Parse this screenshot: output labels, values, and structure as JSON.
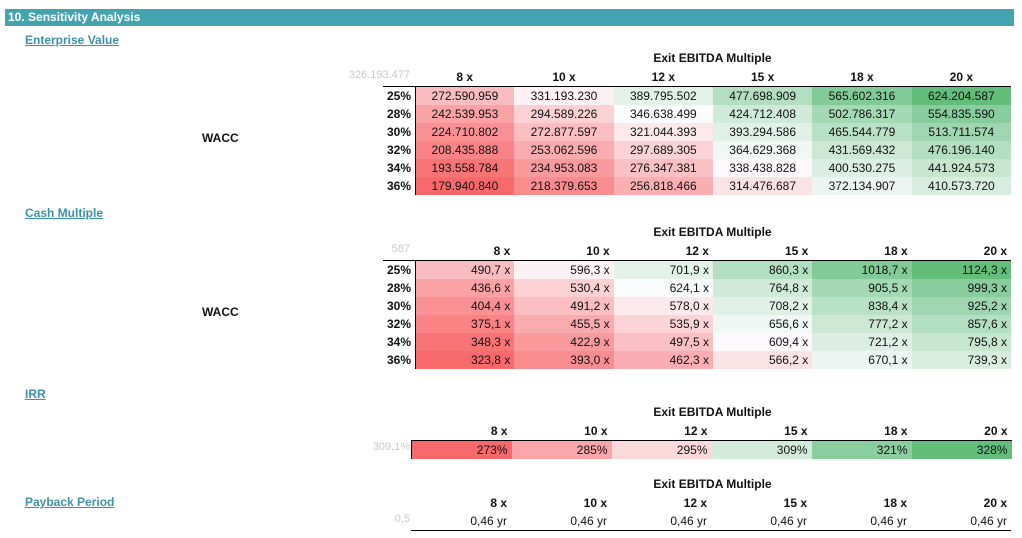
{
  "header": {
    "title": "10. Sensitivity Analysis"
  },
  "row_labels": [
    "25%",
    "28%",
    "30%",
    "32%",
    "34%",
    "36%"
  ],
  "exit_title": "Exit EBITDA Multiple",
  "col_headers": [
    "8 x",
    "10 x",
    "12 x",
    "15 x",
    "18 x",
    "20 x"
  ],
  "wacc_label": "WACC",
  "colors": {
    "header_bg": "#43a4b0",
    "link": "#3a92a6",
    "low": "#f8696b",
    "mid": "#fcfcff",
    "high": "#63be7b"
  },
  "ev": {
    "title": "Enterprise Value",
    "base": "326.193.477",
    "values": [
      [
        "272.590.959",
        "331.193.230",
        "389.795.502",
        "477.698.909",
        "565.602.316",
        "624.204.587"
      ],
      [
        "242.539.953",
        "294.589.226",
        "346.638.499",
        "424.712.408",
        "502.786.317",
        "554.835.590"
      ],
      [
        "224.710.802",
        "272.877.597",
        "321.044.393",
        "393.294.586",
        "465.544.779",
        "513.711.574"
      ],
      [
        "208.435.888",
        "253.062.596",
        "297.689.305",
        "364.629.368",
        "431.569.432",
        "476.196.140"
      ],
      [
        "193.558.784",
        "234.953.083",
        "276.347.381",
        "338.438.828",
        "400.530.275",
        "441.924.573"
      ],
      [
        "179.940.840",
        "218.379.653",
        "256.818.466",
        "314.476.687",
        "372.134.907",
        "410.573.720"
      ]
    ]
  },
  "cash": {
    "title": "Cash Multiple",
    "base": "587",
    "values": [
      [
        "490,7 x",
        "596,3 x",
        "701,9 x",
        "860,3 x",
        "1018,7 x",
        "1124,3 x"
      ],
      [
        "436,6 x",
        "530,4 x",
        "624,1 x",
        "764,8 x",
        "905,5 x",
        "999,3 x"
      ],
      [
        "404,4 x",
        "491,2 x",
        "578,0 x",
        "708,2 x",
        "838,4 x",
        "925,2 x"
      ],
      [
        "375,1 x",
        "455,5 x",
        "535,9 x",
        "656,6 x",
        "777,2 x",
        "857,6 x"
      ],
      [
        "348,3 x",
        "422,9 x",
        "497,5 x",
        "609,4 x",
        "721,2 x",
        "795,8 x"
      ],
      [
        "323,8 x",
        "393,0 x",
        "462,3 x",
        "566,2 x",
        "670,1 x",
        "739,3 x"
      ]
    ]
  },
  "irr": {
    "title": "IRR",
    "base": "309,1%",
    "values": [
      "273%",
      "285%",
      "295%",
      "309%",
      "321%",
      "328%"
    ]
  },
  "payback": {
    "title": "Payback Period",
    "base": "0,5",
    "values": [
      "0,46 yr",
      "0,46 yr",
      "0,46 yr",
      "0,46 yr",
      "0,46 yr",
      "0,46 yr"
    ]
  }
}
